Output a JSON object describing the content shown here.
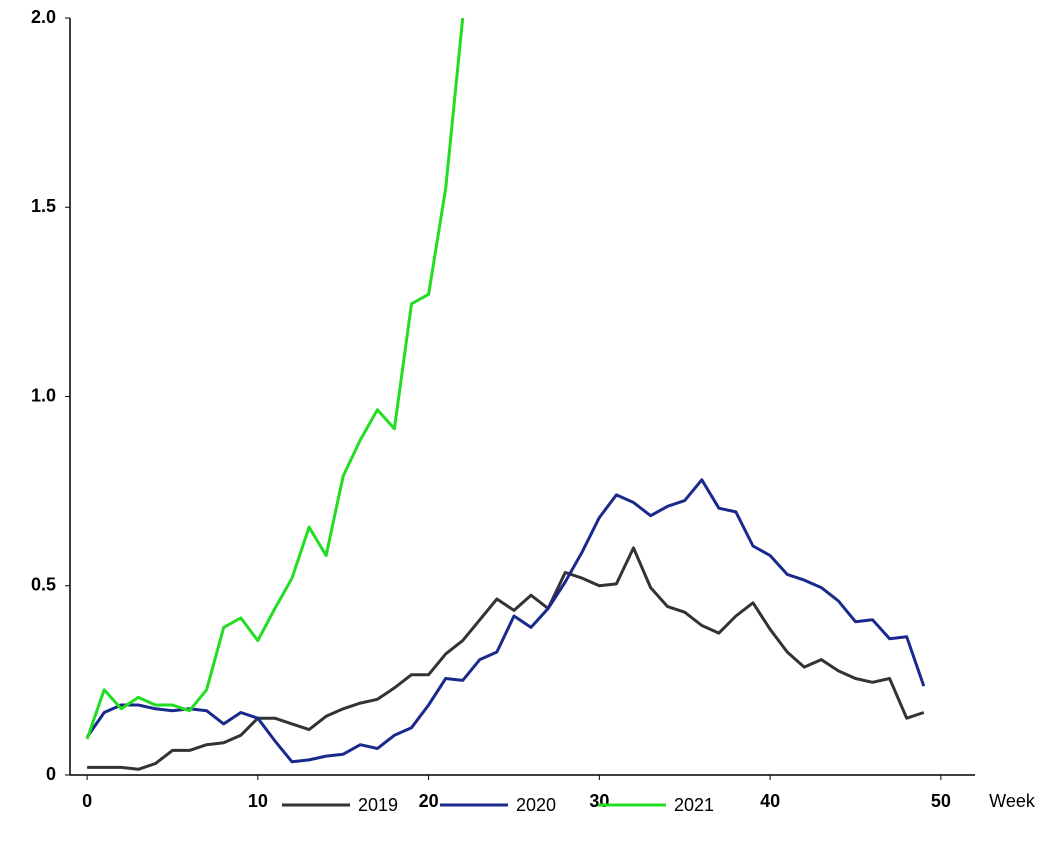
{
  "chart_data": {
    "type": "line",
    "x": [
      0,
      1,
      2,
      3,
      4,
      5,
      6,
      7,
      8,
      9,
      10,
      11,
      12,
      13,
      14,
      15,
      16,
      17,
      18,
      19,
      20,
      21,
      22,
      23,
      24,
      25,
      26,
      27,
      28,
      29,
      30,
      31,
      32,
      33,
      34,
      35,
      36,
      37,
      38,
      39,
      40,
      41,
      42,
      43,
      44,
      45,
      46,
      47,
      48,
      49
    ],
    "x_label": "Week",
    "series": [
      {
        "name": "2019",
        "color": "#333333",
        "values": [
          0.02,
          0.02,
          0.02,
          0.015,
          0.03,
          0.065,
          0.065,
          0.08,
          0.085,
          0.105,
          0.15,
          0.15,
          0.135,
          0.12,
          0.155,
          0.175,
          0.19,
          0.2,
          0.23,
          0.265,
          0.265,
          0.32,
          0.355,
          0.41,
          0.465,
          0.435,
          0.475,
          0.44,
          0.535,
          0.52,
          0.5,
          0.505,
          0.6,
          0.495,
          0.445,
          0.43,
          0.395,
          0.375,
          0.42,
          0.455,
          0.385,
          0.325,
          0.285,
          0.305,
          0.275,
          0.255,
          0.245,
          0.255,
          0.15,
          0.165
        ]
      },
      {
        "name": "2020",
        "color": "#1a2a8c",
        "values": [
          0.1,
          0.165,
          0.185,
          0.185,
          0.175,
          0.17,
          0.175,
          0.17,
          0.135,
          0.165,
          0.15,
          0.09,
          0.035,
          0.04,
          0.05,
          0.055,
          0.08,
          0.07,
          0.105,
          0.125,
          0.185,
          0.255,
          0.25,
          0.305,
          0.325,
          0.42,
          0.39,
          0.44,
          0.51,
          0.59,
          0.68,
          0.74,
          0.72,
          0.685,
          0.71,
          0.725,
          0.78,
          0.705,
          0.695,
          0.605,
          0.58,
          0.53,
          0.515,
          0.495,
          0.46,
          0.405,
          0.41,
          0.36,
          0.365,
          0.235
        ]
      },
      {
        "name": "2021",
        "color": "#22dd22",
        "values": [
          0.095,
          0.225,
          0.175,
          0.205,
          0.185,
          0.185,
          0.17,
          0.225,
          0.39,
          0.415,
          0.355,
          0.44,
          0.52,
          0.655,
          0.58,
          0.79,
          0.885,
          0.965,
          0.915,
          1.245,
          1.27,
          1.55,
          2.0,
          null,
          null,
          null,
          null,
          null,
          null,
          null,
          null,
          null,
          null,
          null,
          null,
          null,
          null,
          null,
          null,
          null,
          null,
          null,
          null,
          null,
          null,
          null,
          null,
          null,
          null,
          null
        ]
      }
    ],
    "xlim": [
      -1,
      52
    ],
    "xticks": [
      0,
      10,
      20,
      30,
      40,
      50
    ],
    "ylim": [
      0,
      2
    ],
    "yticks": [
      0,
      0.5,
      {
        "value": 1,
        "label": "1.0"
      },
      1.5,
      {
        "value": 2,
        "label": "2.0"
      }
    ]
  }
}
